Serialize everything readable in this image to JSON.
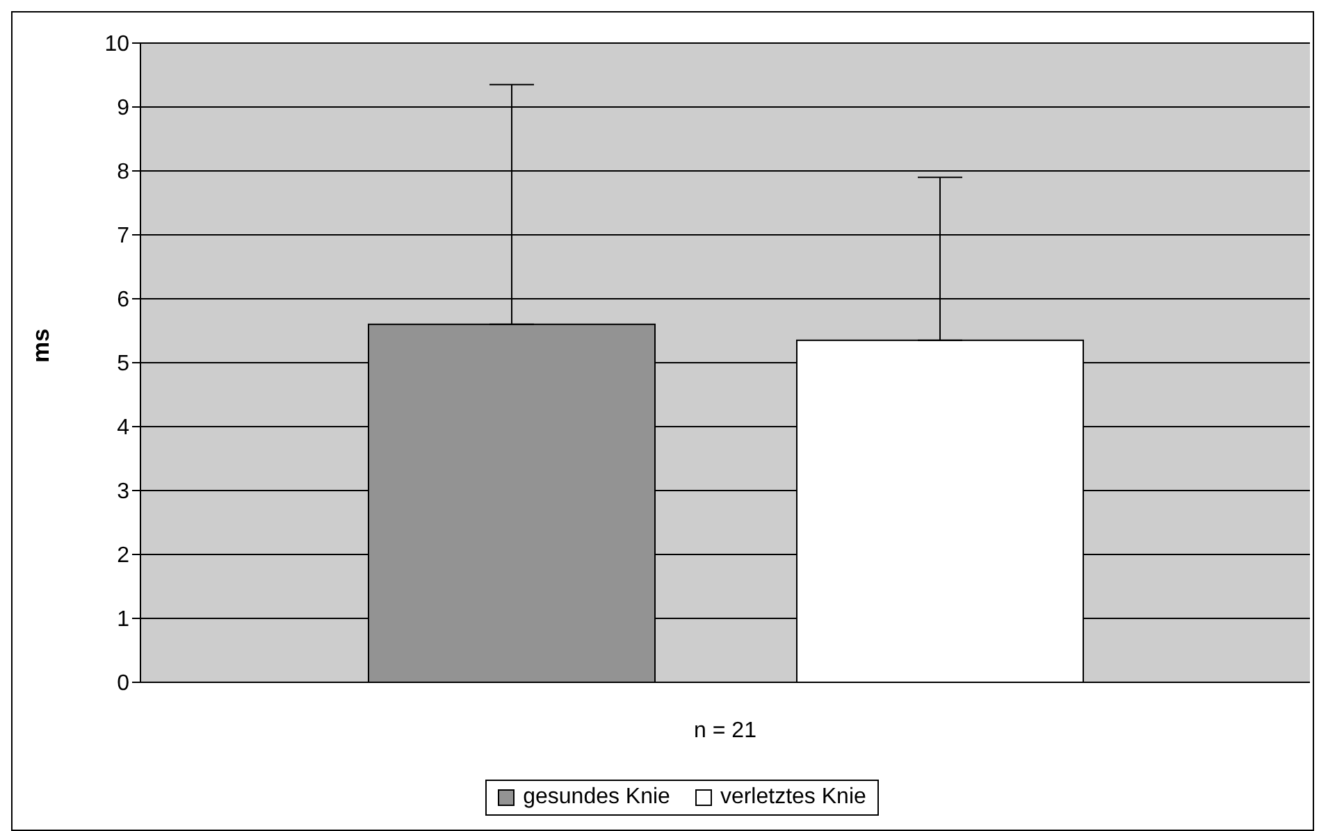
{
  "chart_data": {
    "type": "bar",
    "categories": [
      "n = 21"
    ],
    "ylabel": "ms",
    "series": [
      {
        "name": "gesundes Knie",
        "color": "#939393",
        "values": [
          5.6
        ],
        "errors": [
          [
            5.6,
            9.35
          ]
        ]
      },
      {
        "name": "verletztes Knie",
        "color": "#ffffff",
        "values": [
          5.35
        ],
        "errors": [
          [
            5.35,
            7.9
          ]
        ]
      }
    ],
    "ylim": [
      0,
      10
    ],
    "yticks": [
      0,
      1,
      2,
      3,
      4,
      5,
      6,
      7,
      8,
      9,
      10
    ],
    "grid": "y",
    "legend": "bottom"
  }
}
